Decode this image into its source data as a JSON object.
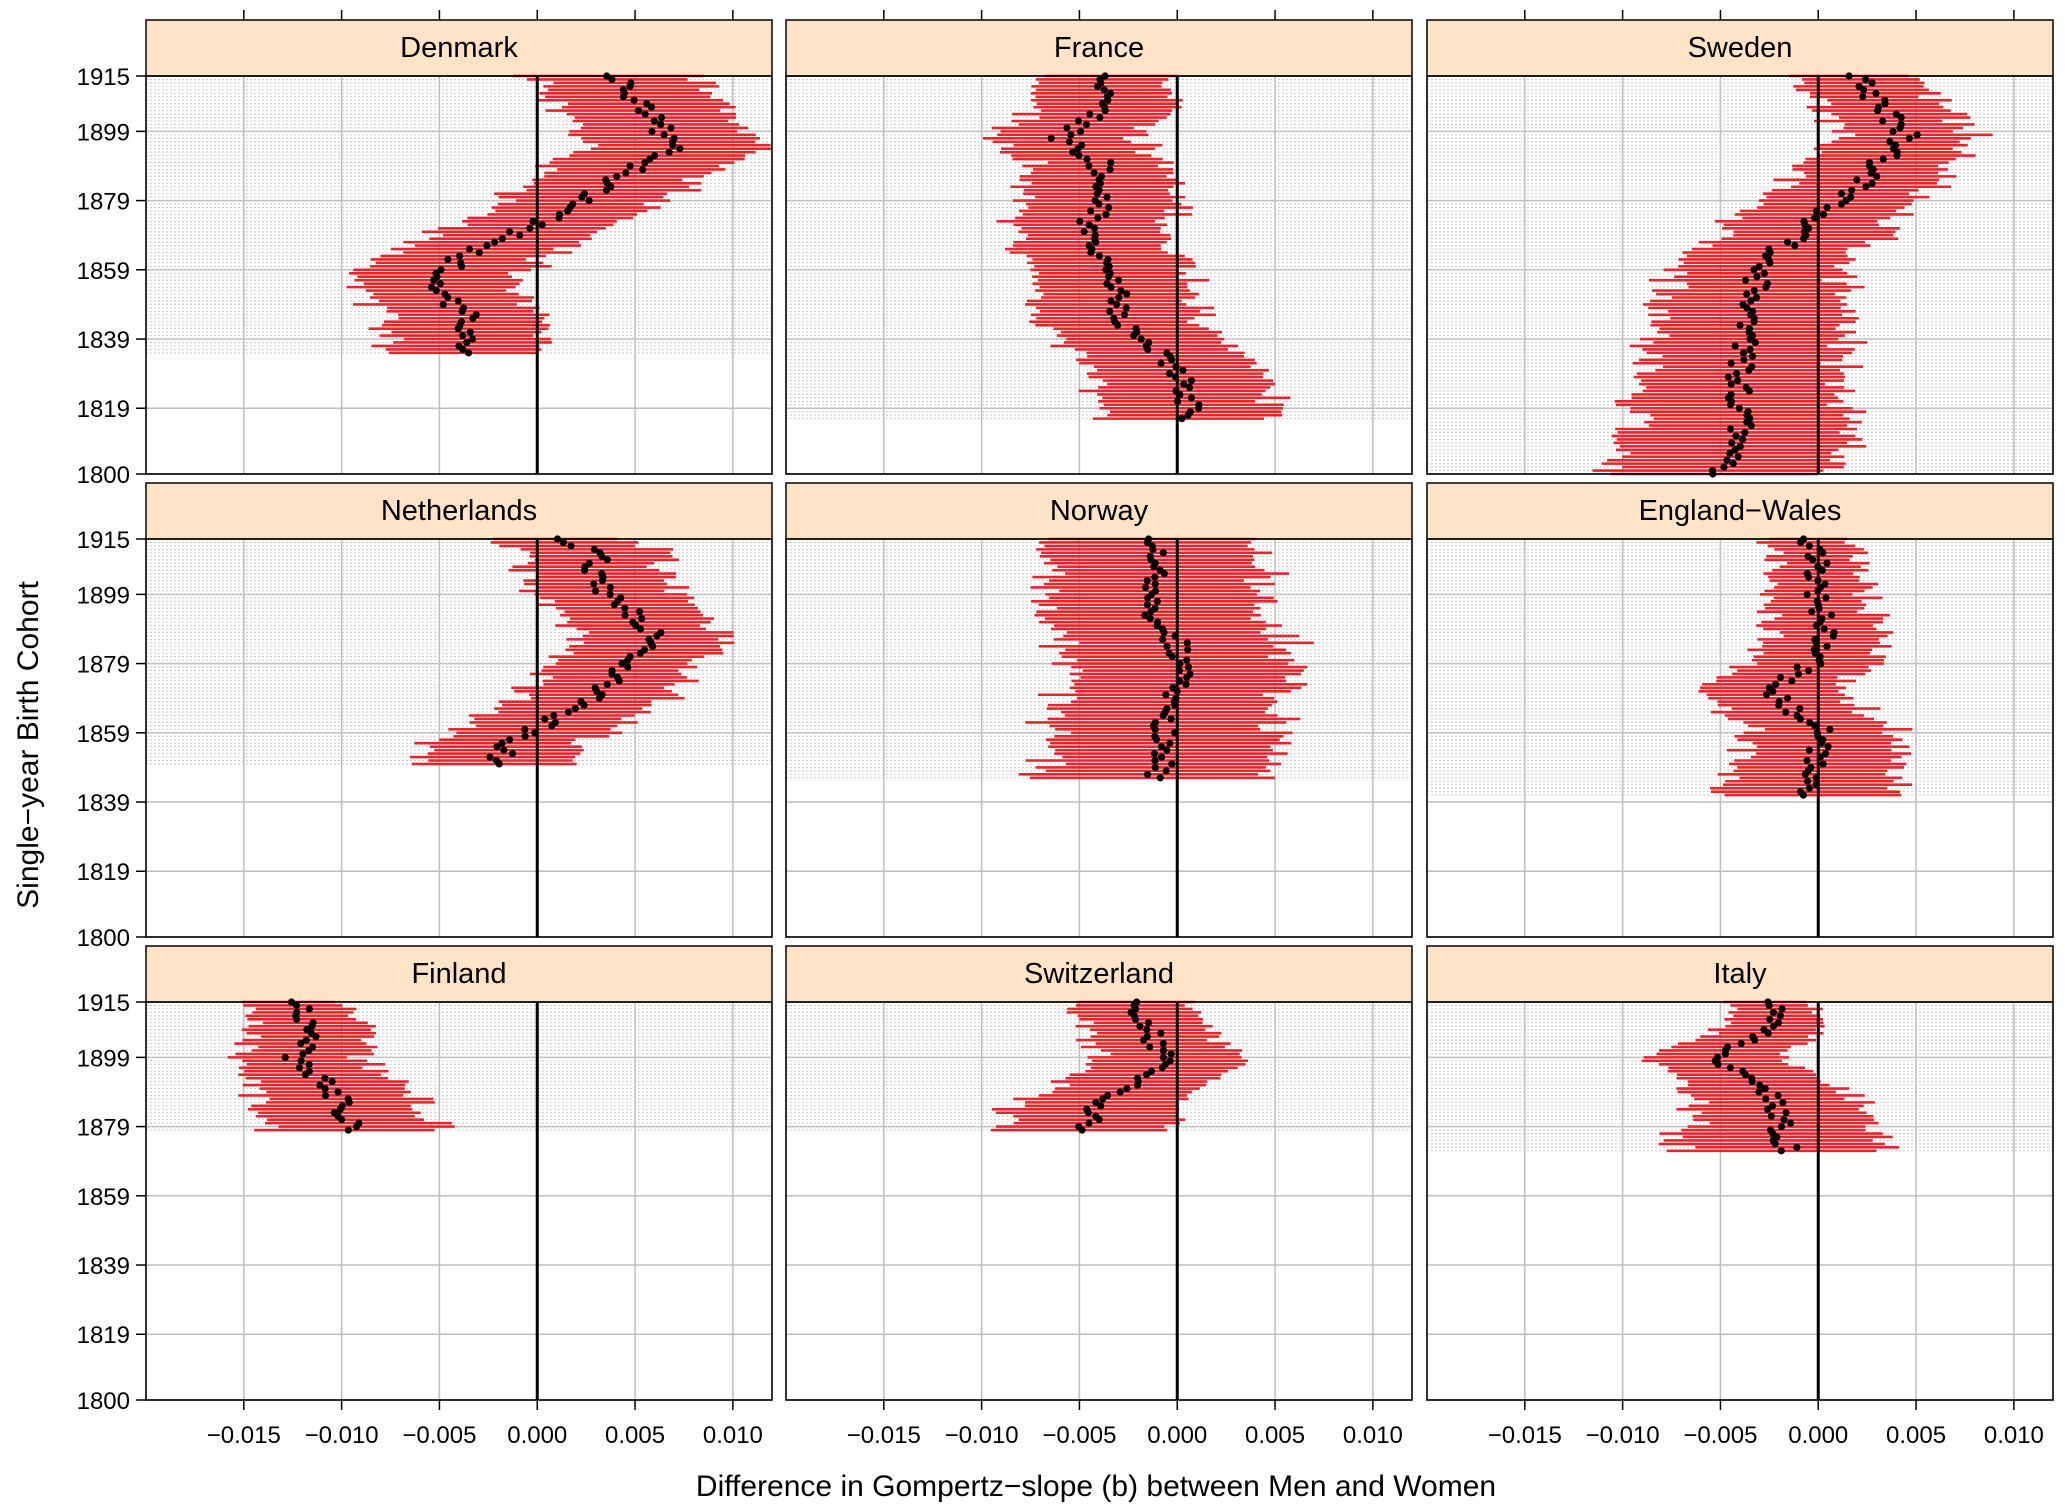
{
  "chart_data": {
    "type": "scatter",
    "xlabel": "Difference in Gompertz−slope (b) between Men and Women",
    "ylabel": "Single−year Birth Cohort",
    "xlim": [
      -0.02,
      0.012
    ],
    "ylim": [
      1800,
      1915
    ],
    "x_ticks": [
      -0.015,
      -0.01,
      -0.005,
      0.0,
      0.005,
      0.01
    ],
    "x_tick_labels": [
      "−0.015",
      "−0.010",
      "−0.005",
      "0.000",
      "0.005",
      "0.010"
    ],
    "y_ticks": [
      1800,
      1819,
      1839,
      1859,
      1879,
      1899,
      1915
    ],
    "y_tick_labels": [
      "1800",
      "1819",
      "1839",
      "1859",
      "1879",
      "1899",
      "1915"
    ],
    "grid": true,
    "reference_line_x": 0,
    "colors": {
      "point": "#000000",
      "interval": "#e8232a",
      "zero_line": "#000000",
      "strip": "#ffe3c6",
      "grid": "#bdbdbd"
    },
    "panels": [
      {
        "name": "Denmark",
        "cohorts": [
          1835,
          1915
        ],
        "anchors": [
          [
            1835,
            -0.0035
          ],
          [
            1845,
            -0.0035
          ],
          [
            1855,
            -0.0055
          ],
          [
            1862,
            -0.004
          ],
          [
            1870,
            -0.001
          ],
          [
            1877,
            0.002
          ],
          [
            1885,
            0.004
          ],
          [
            1895,
            0.007
          ],
          [
            1905,
            0.0055
          ],
          [
            1915,
            0.004
          ]
        ],
        "half_width": [
          0.004,
          0.0045
        ]
      },
      {
        "name": "France",
        "cohorts": [
          1816,
          1915
        ],
        "anchors": [
          [
            1816,
            0.0008
          ],
          [
            1830,
            0.0
          ],
          [
            1840,
            -0.002
          ],
          [
            1848,
            -0.0032
          ],
          [
            1858,
            -0.003
          ],
          [
            1866,
            -0.0045
          ],
          [
            1872,
            -0.0045
          ],
          [
            1882,
            -0.0035
          ],
          [
            1890,
            -0.004
          ],
          [
            1897,
            -0.006
          ],
          [
            1905,
            -0.004
          ],
          [
            1915,
            -0.0035
          ]
        ],
        "half_width": [
          0.0045,
          0.0035
        ]
      },
      {
        "name": "Sweden",
        "cohorts": [
          1800,
          1915
        ],
        "anchors": [
          [
            1800,
            -0.005
          ],
          [
            1812,
            -0.004
          ],
          [
            1830,
            -0.004
          ],
          [
            1845,
            -0.0035
          ],
          [
            1860,
            -0.003
          ],
          [
            1872,
            -0.0005
          ],
          [
            1882,
            0.002
          ],
          [
            1892,
            0.0035
          ],
          [
            1898,
            0.0045
          ],
          [
            1907,
            0.003
          ],
          [
            1915,
            0.002
          ]
        ],
        "half_width": [
          0.006,
          0.003
        ]
      },
      {
        "name": "Netherlands",
        "cohorts": [
          1850,
          1915
        ],
        "anchors": [
          [
            1850,
            -0.002
          ],
          [
            1856,
            -0.0015
          ],
          [
            1862,
            0.0005
          ],
          [
            1870,
            0.003
          ],
          [
            1880,
            0.005
          ],
          [
            1888,
            0.006
          ],
          [
            1895,
            0.0045
          ],
          [
            1903,
            0.003
          ],
          [
            1910,
            0.003
          ],
          [
            1915,
            0.0015
          ]
        ],
        "half_width": [
          0.004,
          0.0035
        ]
      },
      {
        "name": "Norway",
        "cohorts": [
          1846,
          1915
        ],
        "anchors": [
          [
            1846,
            -0.001
          ],
          [
            1855,
            -0.0005
          ],
          [
            1865,
            -0.001
          ],
          [
            1875,
            0.0005
          ],
          [
            1885,
            0.0
          ],
          [
            1895,
            -0.0015
          ],
          [
            1905,
            -0.001
          ],
          [
            1915,
            -0.0015
          ]
        ],
        "half_width": [
          0.006,
          0.0055
        ]
      },
      {
        "name": "England−Wales",
        "cohorts": [
          1841,
          1915
        ],
        "anchors": [
          [
            1841,
            -0.0005
          ],
          [
            1850,
            0.0
          ],
          [
            1860,
            0.0
          ],
          [
            1867,
            -0.0015
          ],
          [
            1872,
            -0.0025
          ],
          [
            1880,
            0.0
          ],
          [
            1888,
            0.0005
          ],
          [
            1895,
            0.0
          ],
          [
            1905,
            0.0
          ],
          [
            1915,
            -0.0005
          ]
        ],
        "half_width": [
          0.0045,
          0.002
        ]
      },
      {
        "name": "Finland",
        "cohorts": [
          1878,
          1915
        ],
        "anchors": [
          [
            1878,
            -0.0095
          ],
          [
            1885,
            -0.01
          ],
          [
            1893,
            -0.011
          ],
          [
            1899,
            -0.0125
          ],
          [
            1905,
            -0.0115
          ],
          [
            1915,
            -0.012
          ]
        ],
        "half_width": [
          0.0045,
          0.0025
        ]
      },
      {
        "name": "Switzerland",
        "cohorts": [
          1878,
          1915
        ],
        "anchors": [
          [
            1878,
            -0.005
          ],
          [
            1885,
            -0.004
          ],
          [
            1892,
            -0.002
          ],
          [
            1899,
            -0.0005
          ],
          [
            1907,
            -0.0015
          ],
          [
            1915,
            -0.002
          ]
        ],
        "half_width": [
          0.0045,
          0.003
        ]
      },
      {
        "name": "Italy",
        "cohorts": [
          1872,
          1915
        ],
        "anchors": [
          [
            1872,
            -0.0015
          ],
          [
            1878,
            -0.002
          ],
          [
            1885,
            -0.002
          ],
          [
            1892,
            -0.0035
          ],
          [
            1898,
            -0.005
          ],
          [
            1903,
            -0.004
          ],
          [
            1908,
            -0.0025
          ],
          [
            1915,
            -0.002
          ]
        ],
        "half_width": [
          0.0055,
          0.002
        ]
      }
    ]
  }
}
